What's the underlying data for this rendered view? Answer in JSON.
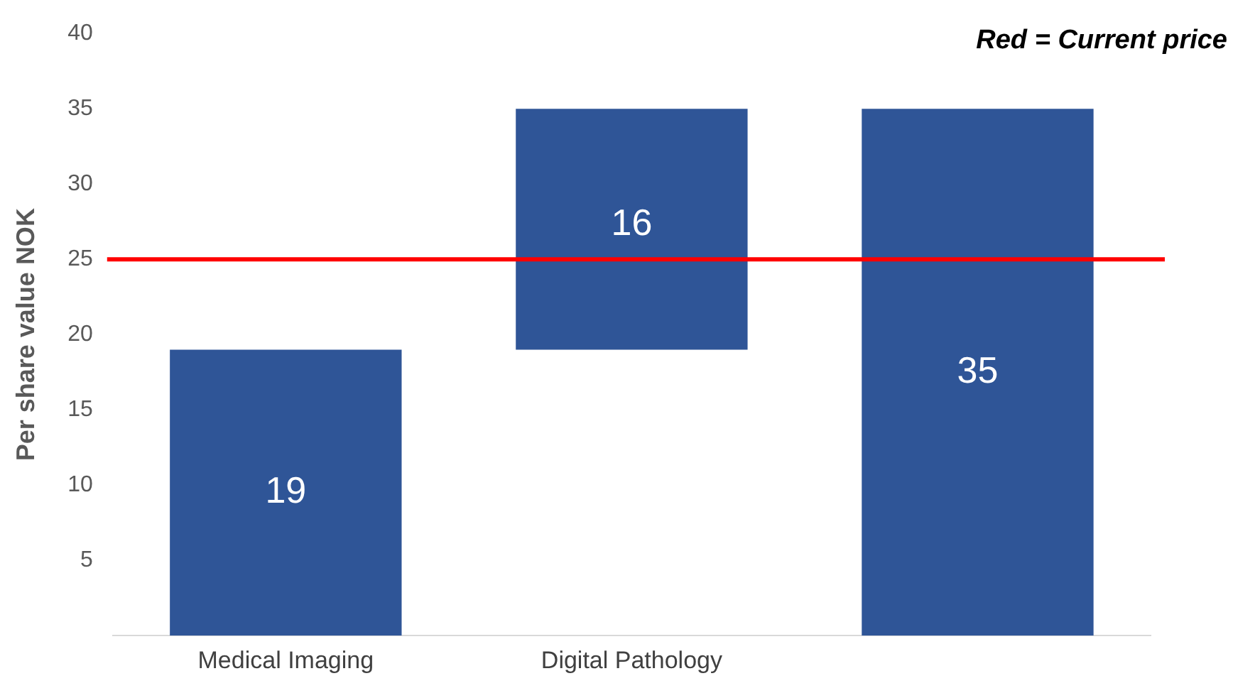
{
  "chart_data": {
    "type": "bar",
    "ylabel": "Per share value NOK",
    "categories": [
      "Medical Imaging",
      "Digital Pathology",
      null
    ],
    "values": [
      19,
      16,
      35
    ],
    "base": [
      0,
      19,
      0
    ],
    "color": "#2f5597",
    "ylim": [
      0,
      40
    ],
    "yticks": [
      5,
      10,
      15,
      20,
      25,
      30,
      35,
      40
    ],
    "grid": false,
    "legend": false,
    "data_labels": true,
    "ref_lines": [
      {
        "axis": "y",
        "value": 25,
        "color": "#ff0000"
      }
    ],
    "annotations": [
      "Red = Current price"
    ]
  }
}
